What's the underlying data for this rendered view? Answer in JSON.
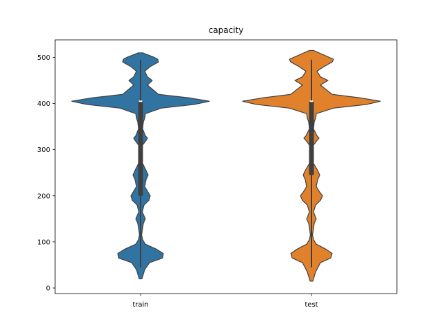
{
  "chart_data": {
    "type": "violin",
    "title": "capacity",
    "xlabel": "",
    "ylabel": "",
    "categories": [
      "train",
      "test"
    ],
    "ylim": [
      -12,
      538
    ],
    "yticks": [
      0,
      100,
      200,
      300,
      400,
      500
    ],
    "grid": false,
    "legend": "none",
    "series": [
      {
        "name": "train",
        "color": "#3274a1",
        "density": {
          "y": [
            20,
            40,
            55,
            65,
            75,
            85,
            95,
            105,
            115,
            125,
            140,
            150,
            155,
            165,
            180,
            190,
            200,
            210,
            220,
            235,
            245,
            255,
            270,
            290,
            310,
            320,
            325,
            330,
            345,
            360,
            368,
            378,
            390,
            398,
            405,
            412,
            420,
            440,
            450,
            458,
            470,
            480,
            490,
            496,
            500,
            510
          ],
          "width": [
            0.02,
            0.06,
            0.13,
            0.32,
            0.33,
            0.22,
            0.07,
            0.03,
            0.015,
            0.025,
            0.04,
            0.07,
            0.055,
            0.025,
            0.05,
            0.12,
            0.14,
            0.1,
            0.06,
            0.08,
            0.11,
            0.08,
            0.03,
            0.02,
            0.03,
            0.08,
            0.1,
            0.07,
            0.03,
            0.04,
            0.06,
            0.07,
            0.3,
            0.78,
            1.0,
            0.72,
            0.26,
            0.1,
            0.17,
            0.1,
            0.06,
            0.14,
            0.26,
            0.25,
            0.2,
            0.03
          ]
        },
        "quartiles": [
          200,
          405
        ],
        "median": 405,
        "whiskers": [
          45,
          495
        ]
      },
      {
        "name": "test",
        "color": "#e1812c",
        "density": {
          "y": [
            15,
            35,
            55,
            65,
            75,
            85,
            95,
            105,
            115,
            125,
            140,
            150,
            155,
            165,
            180,
            190,
            200,
            210,
            220,
            235,
            245,
            255,
            270,
            290,
            310,
            320,
            325,
            330,
            345,
            360,
            368,
            378,
            390,
            398,
            405,
            412,
            420,
            440,
            450,
            458,
            470,
            480,
            490,
            496,
            500,
            515
          ],
          "width": [
            0.02,
            0.06,
            0.13,
            0.28,
            0.3,
            0.2,
            0.07,
            0.03,
            0.015,
            0.025,
            0.04,
            0.07,
            0.055,
            0.03,
            0.06,
            0.13,
            0.16,
            0.11,
            0.07,
            0.09,
            0.12,
            0.09,
            0.03,
            0.02,
            0.03,
            0.08,
            0.11,
            0.08,
            0.03,
            0.04,
            0.06,
            0.07,
            0.32,
            0.8,
            1.0,
            0.72,
            0.3,
            0.13,
            0.24,
            0.13,
            0.08,
            0.18,
            0.3,
            0.32,
            0.26,
            0.03
          ]
        },
        "quartiles": [
          245,
          405
        ],
        "median": 405,
        "whiskers": [
          45,
          495
        ]
      }
    ]
  }
}
